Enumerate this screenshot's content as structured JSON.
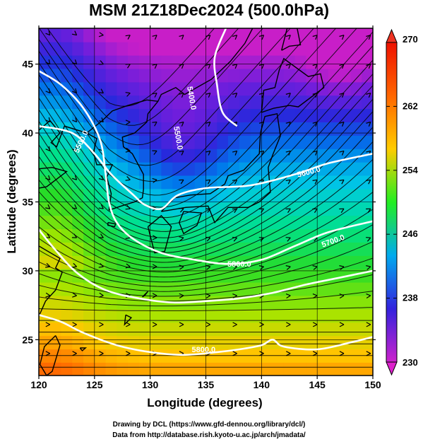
{
  "chart_data": {
    "type": "heatmap",
    "title": "MSM 21Z18Dec2024 (500.0hPa)",
    "xlabel": "Longitude (degrees)",
    "ylabel": "Latitude  (degrees)",
    "xlim": [
      120,
      150
    ],
    "ylim": [
      22.4,
      47.6
    ],
    "x_ticks": [
      120,
      125,
      130,
      135,
      140,
      145,
      150
    ],
    "x_tick_labels": [
      "120",
      "125",
      "130",
      "135",
      "140",
      "145",
      "150"
    ],
    "y_ticks": [
      25,
      30,
      35,
      40,
      45
    ],
    "y_tick_labels": [
      "25",
      "30",
      "35",
      "40",
      "45"
    ],
    "grid": true,
    "field": "temperature (K), color shaded",
    "colorbar": {
      "min": 230,
      "max": 270,
      "ticks": [
        230,
        238,
        246,
        254,
        262,
        270
      ],
      "tick_labels": [
        "230",
        "238",
        "246",
        "254",
        "262",
        "270"
      ],
      "extend": "both",
      "colors": [
        "#cc22cc",
        "#3322dd",
        "#00aaee",
        "#22ee22",
        "#ffcc00",
        "#ff6600",
        "#ee1100"
      ]
    },
    "contours": [
      {
        "label": "5400.0",
        "points": [
          [
            137.8,
            40.5
          ],
          [
            136.5,
            41.5
          ],
          [
            136.0,
            43.5
          ],
          [
            135.8,
            45.5
          ],
          [
            136.8,
            47.6
          ]
        ]
      },
      {
        "label": "5500.0",
        "points": [
          [
            120,
            40.5
          ],
          [
            123,
            40.0
          ],
          [
            125,
            38.5
          ],
          [
            126.5,
            37.0
          ],
          [
            128.5,
            35.5
          ],
          [
            129.5,
            34.8
          ],
          [
            131,
            34.5
          ],
          [
            132.5,
            35.5
          ],
          [
            135,
            36.0
          ],
          [
            139,
            36.2
          ],
          [
            143,
            37.0
          ],
          [
            146,
            37.8
          ],
          [
            150,
            38.5
          ]
        ]
      },
      {
        "label": "5600.0",
        "points": [
          [
            120,
            44.5
          ],
          [
            122,
            43.5
          ],
          [
            124,
            41.8
          ],
          [
            125.5,
            39.5
          ],
          [
            126,
            37.0
          ],
          [
            126.3,
            35.0
          ],
          [
            127,
            33.5
          ],
          [
            128.5,
            32.3
          ],
          [
            131,
            31.3
          ],
          [
            134,
            30.8
          ],
          [
            137,
            30.5
          ],
          [
            140,
            30.8
          ],
          [
            143,
            31.8
          ],
          [
            146,
            32.8
          ],
          [
            150,
            33.6
          ]
        ]
      },
      {
        "label": "5700.0",
        "points": [
          [
            120,
            33.0
          ],
          [
            121.5,
            31.5
          ],
          [
            123.5,
            29.8
          ],
          [
            126,
            28.6
          ],
          [
            129,
            28.0
          ],
          [
            132,
            27.7
          ],
          [
            135,
            27.8
          ],
          [
            138,
            28.0
          ],
          [
            141,
            28.4
          ],
          [
            144,
            29.0
          ],
          [
            147,
            29.5
          ],
          [
            150,
            30.0
          ]
        ]
      },
      {
        "label": "5800.0",
        "points": [
          [
            120,
            26.8
          ],
          [
            122,
            26.3
          ],
          [
            124,
            25.5
          ],
          [
            127,
            24.6
          ],
          [
            130,
            24.1
          ],
          [
            133,
            23.9
          ],
          [
            136,
            24.1
          ],
          [
            138,
            24.3
          ],
          [
            140,
            24.6
          ],
          [
            141,
            25.0
          ],
          [
            142,
            24.5
          ],
          [
            145,
            24.3
          ],
          [
            148,
            24.8
          ],
          [
            150,
            25.2
          ]
        ]
      }
    ],
    "contour_labels": [
      {
        "text": "5400.0",
        "lon": 133.5,
        "lat": 42.5,
        "angle": 80
      },
      {
        "text": "5500.0",
        "lon": 124.0,
        "lat": 39.3,
        "angle": -65
      },
      {
        "text": "5500.0",
        "lon": 132.3,
        "lat": 39.6,
        "angle": 80
      },
      {
        "text": "5600.0",
        "lon": 144.3,
        "lat": 37.0,
        "angle": -15
      },
      {
        "text": "5700.0",
        "lon": 146.5,
        "lat": 32.0,
        "angle": -20
      },
      {
        "text": "5800.0",
        "lon": 138.0,
        "lat": 30.3,
        "angle": 0
      },
      {
        "text": "5800.0",
        "lon": 134.8,
        "lat": 24.1,
        "angle": 0
      }
    ]
  },
  "credits": {
    "line1": "Drawing by DCL (https://www.gfd-dennou.org/library/dcl/)",
    "line2": "Data from http://database.rish.kyoto-u.ac.jp/arch/jmadata/"
  }
}
